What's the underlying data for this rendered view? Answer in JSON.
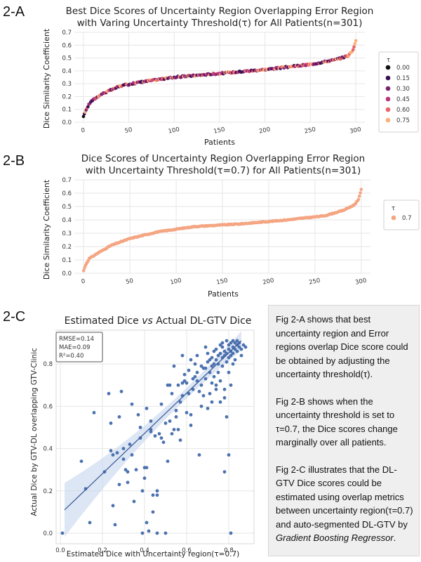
{
  "panels": {
    "a": "2-A",
    "b": "2-B",
    "c": "2-C"
  },
  "colors": {
    "t0": "#111111",
    "t015": "#3b0f52",
    "t030": "#7a1f6e",
    "t045": "#b5367a",
    "t060": "#e8636a",
    "t075": "#fcae7b",
    "b_points": "#f4a582",
    "c_points": "#4c72b0",
    "c_band": "#c6d5ec"
  },
  "chart_data": [
    {
      "type": "scatter",
      "title_line1": "Best Dice Scores of Uncertainty Region Overlapping Error Region",
      "title_line2": "with Varing Uncertainty Threshold(τ) for All Patients(n=301)",
      "xlabel": "Patients",
      "ylabel": "Dice Similarity Coefficient",
      "xlim": [
        -10,
        310
      ],
      "ylim": [
        0,
        0.7
      ],
      "xticks": [
        0,
        50,
        100,
        150,
        200,
        250,
        300
      ],
      "yticks": [
        0.0,
        0.1,
        0.2,
        0.3,
        0.4,
        0.5,
        0.6,
        0.7
      ],
      "legend_title": "τ",
      "legend_entries": [
        "0.00",
        "0.15",
        "0.30",
        "0.45",
        "0.60",
        "0.75"
      ],
      "legend_position": "right",
      "curve_anchors": [
        [
          0,
          0.04
        ],
        [
          3,
          0.1
        ],
        [
          8,
          0.16
        ],
        [
          20,
          0.22
        ],
        [
          40,
          0.28
        ],
        [
          60,
          0.31
        ],
        [
          100,
          0.35
        ],
        [
          150,
          0.38
        ],
        [
          200,
          0.41
        ],
        [
          250,
          0.45
        ],
        [
          280,
          0.49
        ],
        [
          292,
          0.52
        ],
        [
          297,
          0.56
        ],
        [
          300,
          0.64
        ]
      ],
      "n": 301
    },
    {
      "type": "scatter",
      "title_line1": "Dice Scores of Uncertainty Region Overlapping Error Region",
      "title_line2": "with Uncertainty Threshold(τ=0.7) for All Patients(n=301)",
      "xlabel": "Patients",
      "ylabel": "Dice Similarity Coefficient",
      "xlim": [
        -10,
        310
      ],
      "ylim": [
        0,
        0.7
      ],
      "xticks": [
        0,
        50,
        100,
        150,
        200,
        250,
        300
      ],
      "yticks": [
        0.0,
        0.1,
        0.2,
        0.3,
        0.4,
        0.5,
        0.6,
        0.7
      ],
      "legend_title": "τ",
      "legend_entries": [
        "0.7"
      ],
      "legend_position": "right",
      "curve_anchors": [
        [
          0,
          0.02
        ],
        [
          2,
          0.06
        ],
        [
          6,
          0.11
        ],
        [
          15,
          0.15
        ],
        [
          30,
          0.21
        ],
        [
          50,
          0.26
        ],
        [
          80,
          0.31
        ],
        [
          120,
          0.35
        ],
        [
          170,
          0.37
        ],
        [
          220,
          0.4
        ],
        [
          260,
          0.43
        ],
        [
          280,
          0.47
        ],
        [
          292,
          0.51
        ],
        [
          297,
          0.55
        ],
        [
          300,
          0.63
        ]
      ],
      "n": 301
    },
    {
      "type": "scatter",
      "title_prefix": "Estimated Dice ",
      "title_italic": "vs",
      "title_suffix": " Actual DL-GTV Dice",
      "xlabel": "Estimated Dice with Uncertainty region(τ=0.7)",
      "ylabel": "Actual Dice by GTV-DL overlapping GTV-Clinic",
      "xlim": [
        -0.02,
        0.92
      ],
      "ylim": [
        -0.05,
        0.96
      ],
      "xticks": [
        0.0,
        0.2,
        0.4,
        0.6,
        0.8
      ],
      "yticks": [
        0.0,
        0.2,
        0.4,
        0.6,
        0.8
      ],
      "stats": [
        "RMSE=0.14",
        "MAE=0.09",
        "R²=0.40"
      ],
      "regression": {
        "x1": 0.02,
        "y1": 0.11,
        "x2": 0.86,
        "y2": 0.91
      },
      "points": [
        [
          0.01,
          0.0
        ],
        [
          0.1,
          0.34
        ],
        [
          0.12,
          0.21
        ],
        [
          0.14,
          0.05
        ],
        [
          0.16,
          0.57
        ],
        [
          0.21,
          0.29
        ],
        [
          0.23,
          0.66
        ],
        [
          0.24,
          0.52
        ],
        [
          0.24,
          0.39
        ],
        [
          0.25,
          0.37
        ],
        [
          0.25,
          0.13
        ],
        [
          0.26,
          0.04
        ],
        [
          0.27,
          0.38
        ],
        [
          0.28,
          0.55
        ],
        [
          0.29,
          0.67
        ],
        [
          0.3,
          0.4
        ],
        [
          0.3,
          0.35
        ],
        [
          0.31,
          0.3
        ],
        [
          0.32,
          0.29
        ],
        [
          0.32,
          0.24
        ],
        [
          0.33,
          0.42
        ],
        [
          0.34,
          0.61
        ],
        [
          0.34,
          0.37
        ],
        [
          0.36,
          0.3
        ],
        [
          0.37,
          0.56
        ],
        [
          0.38,
          0.5
        ],
        [
          0.38,
          0.45
        ],
        [
          0.39,
          0.2
        ],
        [
          0.39,
          0.0
        ],
        [
          0.4,
          0.31
        ],
        [
          0.4,
          0.26
        ],
        [
          0.41,
          0.59
        ],
        [
          0.41,
          0.31
        ],
        [
          0.41,
          0.05
        ],
        [
          0.42,
          0.01
        ],
        [
          0.43,
          0.49
        ],
        [
          0.43,
          0.48
        ],
        [
          0.44,
          0.18
        ],
        [
          0.44,
          0.1
        ],
        [
          0.45,
          0.46
        ],
        [
          0.46,
          0.18
        ],
        [
          0.46,
          0.2
        ],
        [
          0.46,
          0.0
        ],
        [
          0.47,
          0.47
        ],
        [
          0.48,
          0.45
        ],
        [
          0.49,
          0.43
        ],
        [
          0.5,
          0.52
        ],
        [
          0.5,
          0.0
        ],
        [
          0.51,
          0.34
        ],
        [
          0.52,
          0.53
        ],
        [
          0.52,
          0.7
        ],
        [
          0.53,
          0.66
        ],
        [
          0.54,
          0.79
        ],
        [
          0.54,
          0.49
        ],
        [
          0.55,
          0.55
        ],
        [
          0.55,
          0.58
        ],
        [
          0.56,
          0.49
        ],
        [
          0.57,
          0.62
        ],
        [
          0.58,
          0.65
        ],
        [
          0.58,
          0.71
        ],
        [
          0.59,
          0.75
        ],
        [
          0.59,
          0.72
        ],
        [
          0.6,
          0.71
        ],
        [
          0.61,
          0.77
        ],
        [
          0.62,
          0.51
        ],
        [
          0.62,
          0.56
        ],
        [
          0.63,
          0.68
        ],
        [
          0.63,
          0.73
        ],
        [
          0.64,
          0.8
        ],
        [
          0.64,
          0.74
        ],
        [
          0.65,
          0.72
        ],
        [
          0.65,
          0.76
        ],
        [
          0.66,
          0.37
        ],
        [
          0.66,
          0.67
        ],
        [
          0.67,
          0.79
        ],
        [
          0.67,
          0.7
        ],
        [
          0.68,
          0.78
        ],
        [
          0.68,
          0.65
        ],
        [
          0.69,
          0.73
        ],
        [
          0.69,
          0.78
        ],
        [
          0.7,
          0.81
        ],
        [
          0.7,
          0.85
        ],
        [
          0.71,
          0.82
        ],
        [
          0.71,
          0.76
        ],
        [
          0.71,
          0.66
        ],
        [
          0.72,
          0.79
        ],
        [
          0.72,
          0.83
        ],
        [
          0.72,
          0.71
        ],
        [
          0.73,
          0.86
        ],
        [
          0.73,
          0.8
        ],
        [
          0.73,
          0.74
        ],
        [
          0.74,
          0.68
        ],
        [
          0.74,
          0.82
        ],
        [
          0.74,
          0.87
        ],
        [
          0.75,
          0.8
        ],
        [
          0.75,
          0.76
        ],
        [
          0.75,
          0.84
        ],
        [
          0.76,
          0.89
        ],
        [
          0.76,
          0.85
        ],
        [
          0.76,
          0.62
        ],
        [
          0.77,
          0.83
        ],
        [
          0.77,
          0.88
        ],
        [
          0.77,
          0.79
        ],
        [
          0.77,
          0.9
        ],
        [
          0.78,
          0.86
        ],
        [
          0.78,
          0.84
        ],
        [
          0.78,
          0.64
        ],
        [
          0.78,
          0.68
        ],
        [
          0.79,
          0.91
        ],
        [
          0.79,
          0.85
        ],
        [
          0.79,
          0.81
        ],
        [
          0.79,
          0.55
        ],
        [
          0.8,
          0.87
        ],
        [
          0.8,
          0.83
        ],
        [
          0.8,
          0.89
        ],
        [
          0.8,
          0.76
        ],
        [
          0.8,
          0.37
        ],
        [
          0.81,
          0.9
        ],
        [
          0.81,
          0.86
        ],
        [
          0.81,
          0.84
        ],
        [
          0.81,
          0.7
        ],
        [
          0.81,
          0.0
        ],
        [
          0.82,
          0.91
        ],
        [
          0.82,
          0.88
        ],
        [
          0.82,
          0.85
        ],
        [
          0.82,
          0.8
        ],
        [
          0.83,
          0.9
        ],
        [
          0.83,
          0.87
        ],
        [
          0.83,
          0.82
        ],
        [
          0.84,
          0.89
        ],
        [
          0.84,
          0.91
        ],
        [
          0.84,
          0.86
        ],
        [
          0.85,
          0.88
        ],
        [
          0.85,
          0.9
        ],
        [
          0.86,
          0.87
        ],
        [
          0.86,
          0.84
        ],
        [
          0.87,
          0.89
        ],
        [
          0.88,
          0.88
        ],
        [
          0.78,
          0.29
        ],
        [
          0.72,
          0.62
        ],
        [
          0.67,
          0.6
        ],
        [
          0.7,
          0.59
        ],
        [
          0.74,
          0.7
        ],
        [
          0.76,
          0.72
        ],
        [
          0.53,
          0.47
        ],
        [
          0.57,
          0.44
        ],
        [
          0.6,
          0.57
        ],
        [
          0.62,
          0.82
        ],
        [
          0.65,
          0.84
        ],
        [
          0.69,
          0.88
        ],
        [
          0.58,
          0.84
        ],
        [
          0.35,
          0.15
        ],
        [
          0.28,
          0.23
        ],
        [
          0.43,
          0.53
        ],
        [
          0.48,
          0.61
        ],
        [
          0.51,
          0.7
        ],
        [
          0.56,
          0.7
        ],
        [
          0.61,
          0.66
        ]
      ]
    }
  ],
  "description": {
    "p1": "Fig 2-A shows that best uncertainty region and Error regions overlap Dice score could be obtained by adjusting the uncertainty threshold(τ).",
    "p2": "Fig 2-B shows when the uncertainty threshold is set to τ=0.7, the Dice scores change marginally over all patients.",
    "p3_main": "Fig 2-C illustrates that the DL-GTV Dice scores could be estimated using overlap metrics between uncertainty region(τ=0.7) and auto-segmented DL-GTV by ",
    "p3_italic": "Gradient Boosting Regressor",
    "p3_end": "."
  }
}
